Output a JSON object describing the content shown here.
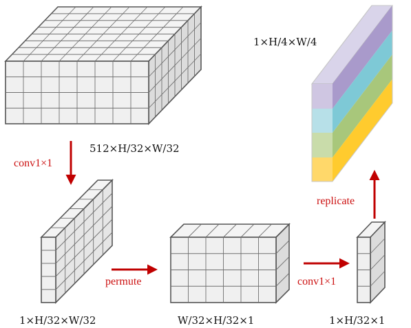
{
  "labels": {
    "feature_map": "512×H/32×W/32",
    "conv_output": "1×H/32×W/32",
    "permuted": "W/32×H/32×1",
    "conv_output_2": "1×H/32×1",
    "replicated": "1×H/4×W/4"
  },
  "operations": {
    "conv1": "conv1×1",
    "permute": "permute",
    "conv2": "conv1×1",
    "replicate": "replicate"
  },
  "colors": {
    "arrow": "#c00000",
    "op_text": "#cc1111",
    "cube_face": "#efefef",
    "cube_edge": "#555555",
    "stripe_purple": "#a99acb",
    "stripe_blue": "#7ec9d6",
    "stripe_green": "#a8c77b",
    "stripe_yellow": "#ffcb2e"
  }
}
